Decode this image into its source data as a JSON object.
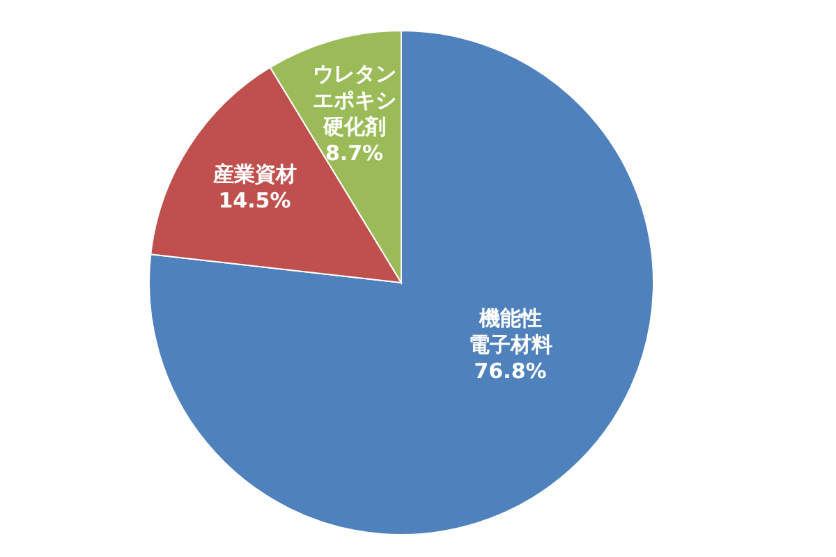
{
  "chart_data": {
    "type": "pie",
    "categories": [
      "機能性電子材料",
      "産業資材",
      "ウレタンエポキシ硬化剤"
    ],
    "values": [
      76.8,
      14.5,
      8.7
    ],
    "colors": [
      "#4f81bd",
      "#c0504d",
      "#9bbb59"
    ],
    "value_labels": [
      "76.8%",
      "14.5%",
      "8.7%"
    ],
    "legend": false
  }
}
